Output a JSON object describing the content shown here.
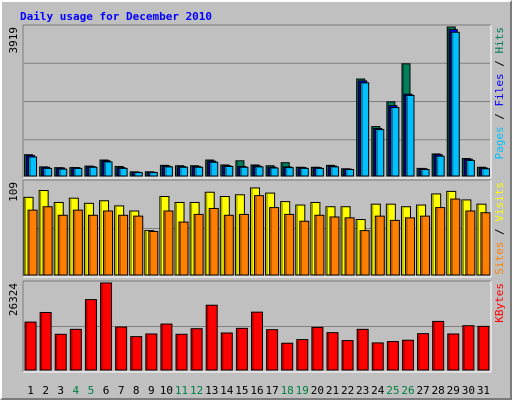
{
  "chart_data": [
    {
      "type": "bar",
      "title": "Daily usage for December 2010",
      "categories": [
        "1",
        "2",
        "3",
        "4",
        "5",
        "6",
        "7",
        "8",
        "9",
        "10",
        "11",
        "12",
        "13",
        "14",
        "15",
        "16",
        "17",
        "18",
        "19",
        "20",
        "21",
        "22",
        "23",
        "24",
        "25",
        "26",
        "27",
        "28",
        "29",
        "30",
        "31"
      ],
      "weekend_days": [
        "4",
        "5",
        "11",
        "12",
        "18",
        "19",
        "25",
        "26"
      ],
      "ylabel_parts": [
        "Pages",
        "Files",
        "Hits"
      ],
      "ylabel_separator": " / ",
      "ymax_label": "3919",
      "ylim": [
        0,
        3919
      ],
      "series": [
        {
          "name": "Hits",
          "color": "#00805c",
          "values": [
            560,
            240,
            220,
            220,
            260,
            420,
            250,
            110,
            110,
            280,
            270,
            270,
            420,
            290,
            400,
            290,
            270,
            350,
            230,
            230,
            280,
            190,
            2550,
            1300,
            1950,
            2950,
            200,
            580,
            3919,
            460,
            230
          ]
        },
        {
          "name": "Files",
          "color": "#0000ff",
          "values": [
            540,
            230,
            210,
            220,
            250,
            400,
            220,
            100,
            100,
            260,
            250,
            250,
            390,
            270,
            250,
            260,
            230,
            240,
            220,
            220,
            260,
            180,
            2500,
            1250,
            1850,
            2150,
            190,
            560,
            3850,
            440,
            210
          ]
        },
        {
          "name": "Pages",
          "color": "#00c0ff",
          "values": [
            500,
            200,
            180,
            200,
            230,
            370,
            200,
            90,
            90,
            240,
            230,
            230,
            360,
            250,
            230,
            240,
            210,
            220,
            200,
            200,
            240,
            170,
            2450,
            1220,
            1800,
            2120,
            170,
            520,
            3780,
            410,
            190
          ]
        }
      ]
    },
    {
      "type": "bar",
      "ylabel_parts": [
        "Sites",
        "Visits"
      ],
      "ylabel_separator": " / ",
      "ymax_label": "109",
      "ylim": [
        0,
        109
      ],
      "series": [
        {
          "name": "Visits",
          "color": "#ffff00",
          "values": [
            91,
            99,
            85,
            90,
            84,
            87,
            81,
            75,
            52,
            92,
            85,
            85,
            97,
            92,
            94,
            102,
            96,
            86,
            82,
            85,
            80,
            80,
            65,
            83,
            83,
            80,
            82,
            95,
            98,
            88,
            83
          ]
        },
        {
          "name": "Sites",
          "color": "#ff8000",
          "values": [
            76,
            80,
            70,
            76,
            70,
            75,
            70,
            69,
            51,
            75,
            62,
            71,
            78,
            70,
            71,
            93,
            79,
            71,
            63,
            70,
            68,
            67,
            52,
            69,
            64,
            67,
            69,
            79,
            89,
            75,
            73
          ]
        }
      ]
    },
    {
      "type": "bar",
      "ylabel_parts": [
        "KBytes"
      ],
      "ylabel_separator": "",
      "ymax_label": "26324",
      "ylim": [
        0,
        26324
      ],
      "series": [
        {
          "name": "KBytes",
          "color": "#ff0000",
          "values": [
            14500,
            17400,
            10800,
            12300,
            21300,
            26324,
            13000,
            10100,
            10900,
            13900,
            10800,
            12500,
            19600,
            11200,
            12600,
            17500,
            12200,
            8100,
            9200,
            12900,
            11300,
            8900,
            12300,
            8200,
            8600,
            9000,
            11000,
            14700,
            10900,
            13400,
            13200
          ]
        }
      ]
    }
  ]
}
